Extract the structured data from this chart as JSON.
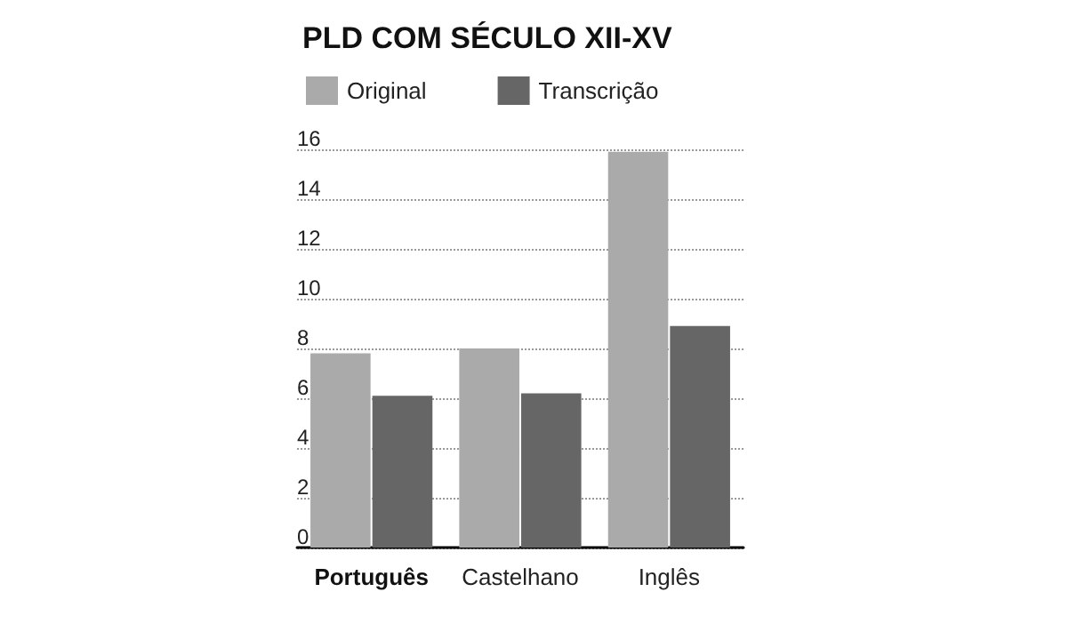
{
  "chart_data": {
    "type": "bar",
    "title": "PLD COM SÉCULO XII-XV",
    "categories": [
      "Português",
      "Castelhano",
      "Inglês"
    ],
    "series": [
      {
        "name": "Original",
        "color": "#aaaaaa",
        "values": [
          7.8,
          8.0,
          15.9
        ]
      },
      {
        "name": "Transcrição",
        "color": "#666666",
        "values": [
          6.1,
          6.2,
          8.9
        ]
      }
    ],
    "ylim": [
      0,
      16
    ],
    "yticks": [
      0,
      2,
      4,
      6,
      8,
      10,
      12,
      14,
      16
    ],
    "grid": "y",
    "legend": "top left"
  }
}
